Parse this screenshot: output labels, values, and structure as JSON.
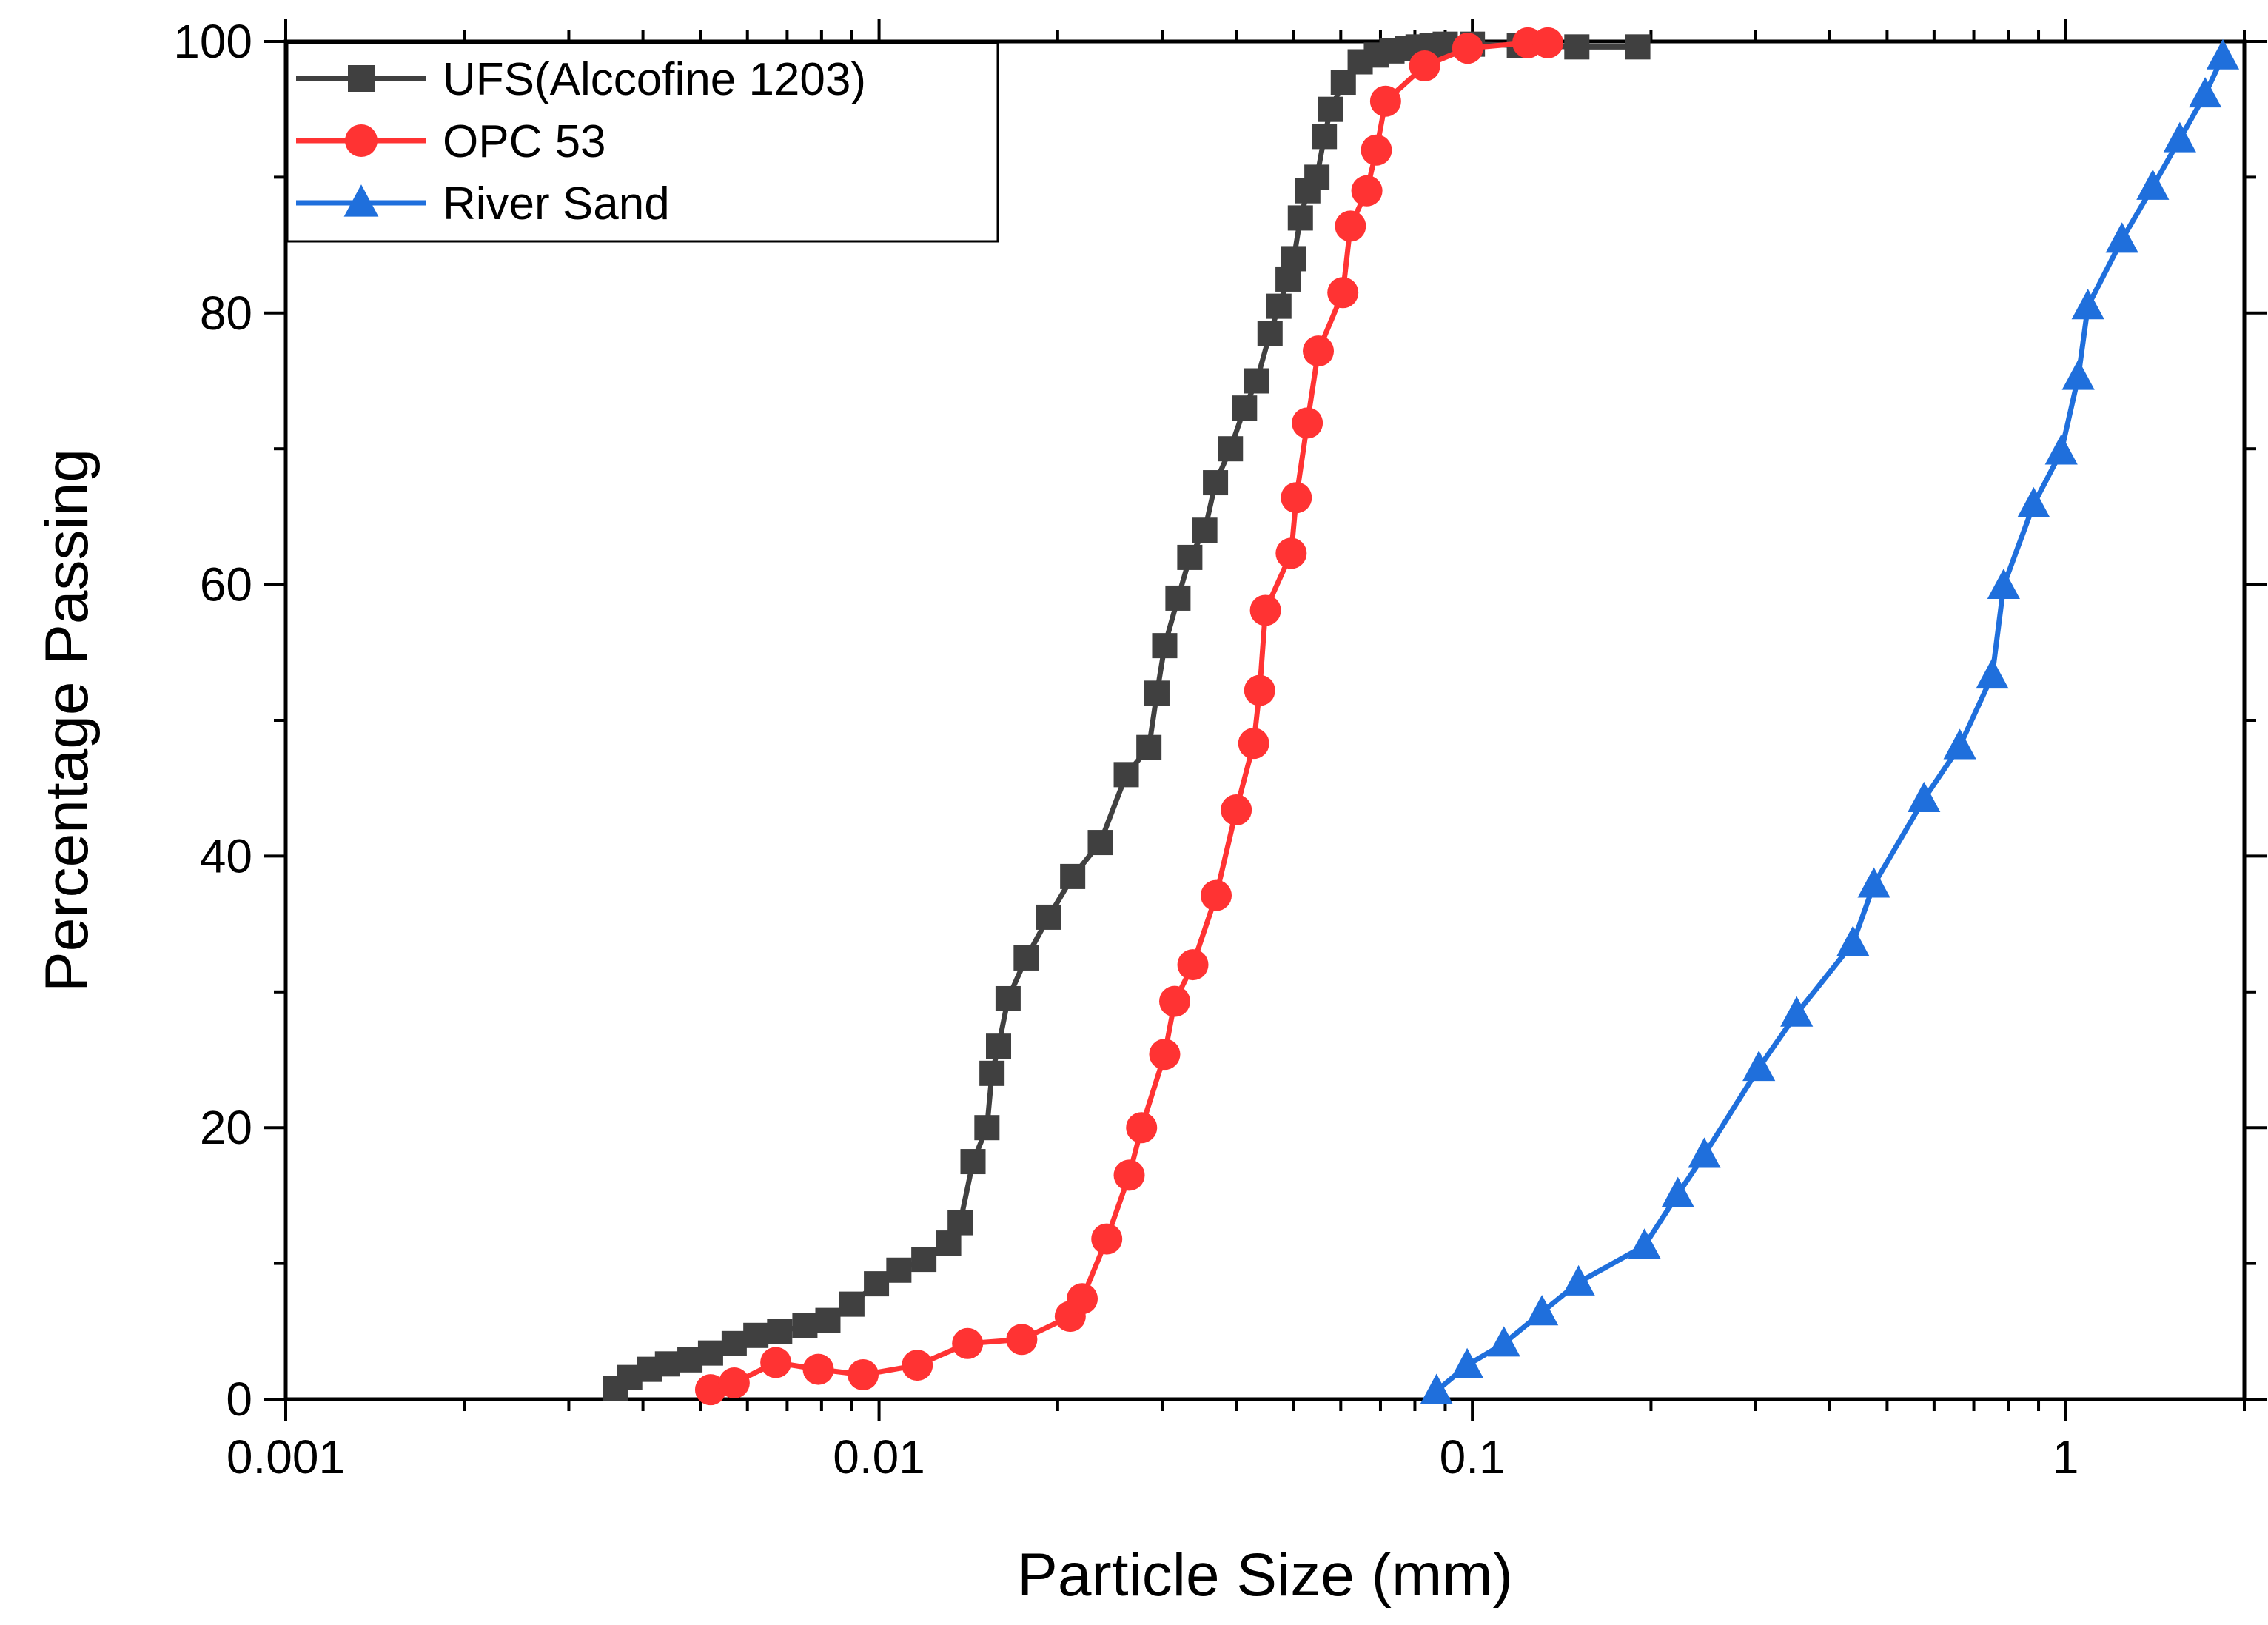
{
  "chart_data": {
    "type": "line",
    "title": "",
    "xlabel": "Particle Size (mm)",
    "ylabel": "Percentage Passing",
    "xscale": "log",
    "xlim": [
      0.001,
      2.0
    ],
    "ylim": [
      0,
      100
    ],
    "x_ticks": [
      0.001,
      0.01,
      0.1,
      1
    ],
    "x_tick_labels": [
      "0.001",
      "0.01",
      "0.1",
      "1"
    ],
    "y_ticks": [
      0,
      20,
      40,
      60,
      80,
      100
    ],
    "y_tick_labels": [
      "0",
      "20",
      "40",
      "60",
      "80",
      "100"
    ],
    "grid": false,
    "legend_position": "top-left",
    "series": [
      {
        "name": "UFS(Alccofine 1203)",
        "color": "#404040",
        "marker": "square",
        "x": [
          0.0036,
          0.0038,
          0.0041,
          0.0044,
          0.0048,
          0.0052,
          0.0057,
          0.0062,
          0.0068,
          0.0075,
          0.0082,
          0.009,
          0.0099,
          0.0108,
          0.0119,
          0.0131,
          0.0137,
          0.0144,
          0.0152,
          0.0155,
          0.0159,
          0.0165,
          0.0177,
          0.0193,
          0.0212,
          0.0236,
          0.0261,
          0.0285,
          0.0294,
          0.0303,
          0.0319,
          0.0334,
          0.0354,
          0.0369,
          0.0391,
          0.0413,
          0.0433,
          0.0456,
          0.0472,
          0.0489,
          0.05,
          0.0513,
          0.0528,
          0.0547,
          0.0563,
          0.0577,
          0.0606,
          0.0647,
          0.0689,
          0.0732,
          0.0777,
          0.081,
          0.0855,
          0.09,
          0.1,
          0.12,
          0.15,
          0.19
        ],
        "y": [
          0.8,
          1.6,
          2.2,
          2.6,
          2.9,
          3.4,
          4.1,
          4.7,
          5.0,
          5.4,
          5.8,
          7.0,
          8.5,
          9.5,
          10.3,
          11.5,
          13.0,
          17.5,
          20.0,
          24.0,
          26.0,
          29.5,
          32.5,
          35.5,
          38.5,
          41.0,
          46.0,
          48.0,
          52.0,
          55.5,
          59.0,
          62.0,
          64.0,
          67.5,
          70.0,
          73.0,
          75.0,
          78.5,
          80.5,
          82.5,
          84.0,
          87.0,
          89.0,
          90.0,
          93.0,
          95.0,
          97.0,
          98.5,
          99.0,
          99.3,
          99.5,
          99.6,
          99.7,
          99.8,
          99.8,
          99.7,
          99.6,
          99.6
        ]
      },
      {
        "name": "OPC 53",
        "color": "#ff3333",
        "marker": "circle",
        "x": [
          0.0052,
          0.0057,
          0.0067,
          0.0079,
          0.0094,
          0.0116,
          0.0141,
          0.0174,
          0.021,
          0.022,
          0.0242,
          0.0264,
          0.0277,
          0.0303,
          0.0315,
          0.0338,
          0.037,
          0.04,
          0.0428,
          0.0438,
          0.0448,
          0.0495,
          0.0505,
          0.0527,
          0.055,
          0.0605,
          0.0623,
          0.0664,
          0.0689,
          0.0714,
          0.0831,
          0.0982,
          0.124,
          0.134
        ],
        "y": [
          0.7,
          1.2,
          2.7,
          2.2,
          1.8,
          2.5,
          4.1,
          4.4,
          6.1,
          7.4,
          11.8,
          16.5,
          20.0,
          25.4,
          29.3,
          32.0,
          37.1,
          43.4,
          48.3,
          52.2,
          58.1,
          62.3,
          66.4,
          71.9,
          77.2,
          81.5,
          86.4,
          89.0,
          92.0,
          95.6,
          98.2,
          99.5,
          99.9,
          99.9
        ]
      },
      {
        "name": "River Sand",
        "color": "#1f6fdc",
        "marker": "triangle",
        "x": [
          0.087,
          0.098,
          0.113,
          0.131,
          0.151,
          0.195,
          0.222,
          0.246,
          0.304,
          0.352,
          0.438,
          0.475,
          0.577,
          0.663,
          0.752,
          0.786,
          0.883,
          0.983,
          1.05,
          1.09,
          1.244,
          1.402,
          1.557,
          1.718,
          1.84
        ],
        "y": [
          0.6,
          2.5,
          4.1,
          6.4,
          8.6,
          11.3,
          15.1,
          18.0,
          24.4,
          28.4,
          33.6,
          37.9,
          44.2,
          48.1,
          53.3,
          59.9,
          65.9,
          69.8,
          75.3,
          80.5,
          85.4,
          89.3,
          92.8,
          96.1,
          98.9
        ]
      }
    ]
  }
}
